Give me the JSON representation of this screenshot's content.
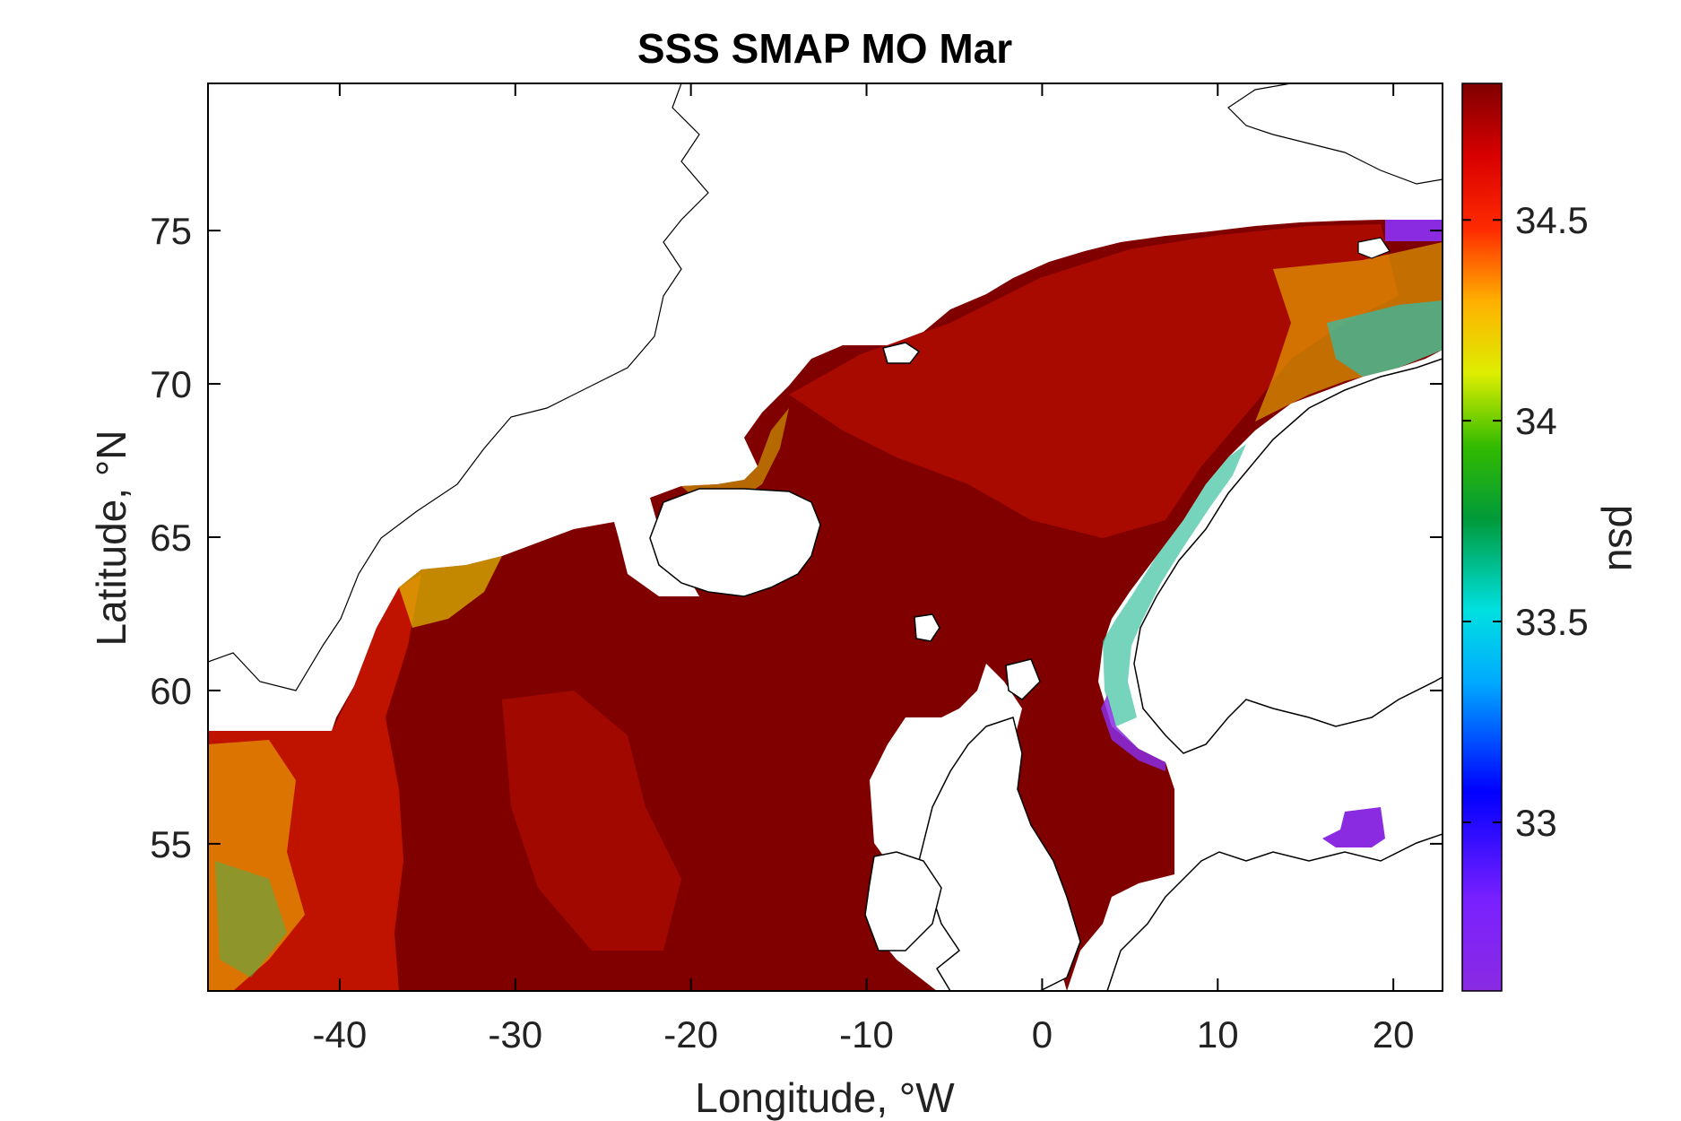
{
  "figure": {
    "title": "SSS SMAP MO Mar",
    "xlabel": "Longitude, °W",
    "ylabel": "Latitude, °N",
    "x_ticks": [
      {
        "value": -40,
        "label": "-40"
      },
      {
        "value": -30,
        "label": "-30"
      },
      {
        "value": -20,
        "label": "-20"
      },
      {
        "value": -10,
        "label": "-10"
      },
      {
        "value": 0,
        "label": "0"
      },
      {
        "value": 10,
        "label": "10"
      },
      {
        "value": 20,
        "label": "20"
      }
    ],
    "y_ticks": [
      {
        "value": 55,
        "label": "55"
      },
      {
        "value": 60,
        "label": "60"
      },
      {
        "value": 65,
        "label": "65"
      },
      {
        "value": 70,
        "label": "70"
      },
      {
        "value": 75,
        "label": "75"
      }
    ],
    "colorbar": {
      "label": "psu",
      "ticks": [
        {
          "value": 33,
          "label": "33"
        },
        {
          "value": 33.5,
          "label": "33.5"
        },
        {
          "value": 34,
          "label": "34"
        },
        {
          "value": 34.5,
          "label": "34.5"
        }
      ]
    }
  },
  "chart_data": {
    "type": "heatmap",
    "title": "SSS SMAP MO Mar",
    "xlabel": "Longitude, °W",
    "ylabel": "Latitude, °N",
    "xlim": [
      -47.5,
      22.8
    ],
    "ylim": [
      50.2,
      79.8
    ],
    "clim": [
      32.58,
      34.84
    ],
    "colormap": "jet-like (purple → blue → cyan → green → yellow → red → dark red)",
    "colorbar_label": "psu",
    "grid": false,
    "field_summary": [
      {
        "region": "open North Atlantic south of Iceland (-35 to -10)",
        "value": 34.84
      },
      {
        "region": "Norwegian Sea interior",
        "value": 34.8
      },
      {
        "region": "Labrador/Irminger margin (-47 to -37)",
        "value": 34.4
      },
      {
        "region": "Norwegian coastal current",
        "value": 33.9
      },
      {
        "region": "Barents Sea opening (15 to 22, 71-72)",
        "value": 33.9
      },
      {
        "region": "Baltic Sea patch (~18, 56)",
        "value": 32.6
      }
    ]
  }
}
